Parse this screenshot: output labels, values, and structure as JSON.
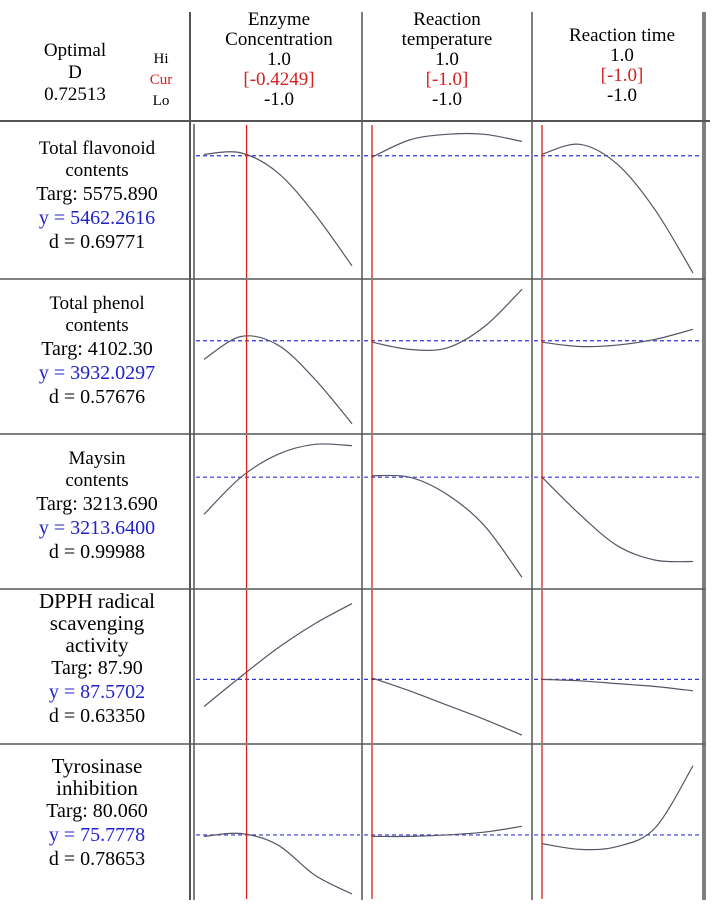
{
  "overall": {
    "label_line1": "Optimal",
    "label_line2": "D",
    "value": "0.72513",
    "hi_label": "Hi",
    "cur_label": "Cur",
    "lo_label": "Lo"
  },
  "factors": [
    {
      "name_line1": "Enzyme",
      "name_line2": "Concentration",
      "hi": "1.0",
      "cur": "[-0.4249]",
      "lo": "-1.0",
      "cur_value": -0.4249
    },
    {
      "name_line1": "Reaction",
      "name_line2": "temperature",
      "hi": "1.0",
      "cur": "[-1.0]",
      "lo": "-1.0",
      "cur_value": -1.0
    },
    {
      "name_line1": "Reaction time",
      "name_line2": "",
      "hi": "1.0",
      "cur": "[-1.0]",
      "lo": "-1.0",
      "cur_value": -1.0
    }
  ],
  "responses": [
    {
      "name_lines": [
        "Total flavonoid",
        "contents"
      ],
      "targ": "Targ: 5575.890",
      "y": "y = 5462.2616",
      "d": "d = 0.69771"
    },
    {
      "name_lines": [
        "Total phenol",
        "contents"
      ],
      "targ": "Targ: 4102.30",
      "y": "y = 3932.0297",
      "d": "d = 0.57676"
    },
    {
      "name_lines": [
        "Maysin",
        "contents"
      ],
      "targ": "Targ: 3213.690",
      "y": "y = 3213.6400",
      "d": "d = 0.99988"
    },
    {
      "name_lines": [
        "DPPH radical",
        "scavenging",
        "activity"
      ],
      "targ": "Targ: 87.90",
      "y": "y = 87.5702",
      "d": "d = 0.63350"
    },
    {
      "name_lines": [
        "Tyrosinase",
        "inhibition"
      ],
      "targ": "Targ: 80.060",
      "y": "y = 75.7778",
      "d": "d = 0.78653"
    }
  ],
  "chart_data": {
    "type": "line",
    "x": [
      -1.0,
      -0.5,
      0.0,
      0.5,
      1.0
    ],
    "x_range": [
      -1.0,
      1.0
    ],
    "y_range": [
      0,
      1
    ],
    "colors": {
      "curve": "#555566",
      "current_line": "#d42020",
      "target_line": "#3333dd",
      "grid": "#555555"
    },
    "target_level": [
      0.82,
      0.61,
      0.74,
      0.41,
      0.41
    ],
    "panels": [
      [
        [
          0.83,
          0.84,
          0.7,
          0.41,
          0.05
        ],
        [
          0.81,
          0.93,
          0.97,
          0.97,
          0.92
        ],
        [
          0.83,
          0.9,
          0.76,
          0.44,
          0.0
        ]
      ],
      [
        [
          0.48,
          0.64,
          0.58,
          0.34,
          0.03
        ],
        [
          0.6,
          0.55,
          0.56,
          0.71,
          0.97
        ],
        [
          0.6,
          0.57,
          0.58,
          0.62,
          0.69
        ]
      ],
      [
        [
          0.48,
          0.74,
          0.9,
          0.97,
          0.96
        ],
        [
          0.75,
          0.74,
          0.62,
          0.4,
          0.04
        ],
        [
          0.74,
          0.48,
          0.26,
          0.16,
          0.15
        ]
      ],
      [
        [
          0.22,
          0.43,
          0.63,
          0.8,
          0.94
        ],
        [
          0.42,
          0.33,
          0.23,
          0.13,
          0.02
        ],
        [
          0.41,
          0.4,
          0.38,
          0.36,
          0.33
        ]
      ],
      [
        [
          0.4,
          0.42,
          0.34,
          0.13,
          0.0
        ],
        [
          0.4,
          0.4,
          0.41,
          0.43,
          0.47
        ],
        [
          0.35,
          0.31,
          0.33,
          0.46,
          0.89
        ]
      ]
    ]
  }
}
